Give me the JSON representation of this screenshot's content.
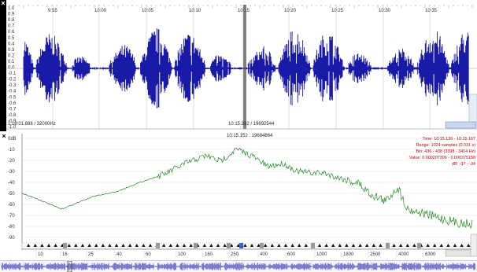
{
  "waveform": {
    "time_labels": [
      "9:55",
      "10:00",
      "10:05",
      "10:10",
      "10:15",
      "10:20",
      "10:25",
      "10:30",
      "10:35"
    ],
    "amp_labels": [
      "1.0",
      "0.9",
      "0.8",
      "0.7",
      "0.6",
      "0.5",
      "0.4",
      "0.3",
      "0.2",
      "0.1",
      "0.0",
      "-0.1",
      "-0.2",
      "-0.3",
      "-0.4",
      "-0.5",
      "-0.6",
      "-0.7",
      "-0.8",
      "-0.9",
      "-1.0"
    ],
    "bottom_left": "1:18:01.888 / 32000Hz",
    "cursor_label": "10:15.392 / 19692544",
    "color": "#1a1aa8"
  },
  "spectrum": {
    "cursor_label": "10:15.152 : 19684864",
    "db_labels": [
      "0dB",
      "-10",
      "-20",
      "-30",
      "-40",
      "-50",
      "-60",
      "-70",
      "-80",
      "-90"
    ],
    "freq_labels": [
      "10",
      "16",
      "25",
      "40",
      "60",
      "100",
      "160",
      "250",
      "400",
      "600",
      "1000",
      "1600",
      "2500",
      "4000",
      "6300"
    ],
    "info": {
      "time": "Time: 10:15.136 - 10:15.167",
      "range": "Range: 1024 samples (0.031 s)",
      "bin": "Bin: 436 - 438 (3398 - 3414 Hz)",
      "value": "Value: 0.000207306 - 0.000375158",
      "db": "dB: -37 - -34"
    },
    "color": "#1f8a1f"
  }
}
